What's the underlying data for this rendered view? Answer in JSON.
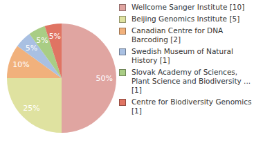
{
  "chart_data": {
    "type": "pie",
    "categories": [
      "Wellcome Sanger Institute [10]",
      "Beijing Genomics Institute [5]",
      "Canadian Centre for DNA Barcoding [2]",
      "Swedish Museum of Natural History [1]",
      "Slovak Academy of Sciences, Plant Science and Biodiversity ... [1]",
      "Centre for Biodiversity Genomics [1]"
    ],
    "values": [
      50,
      25,
      10,
      5,
      5,
      5
    ],
    "value_labels": [
      "50%",
      "25%",
      "10%",
      "5%",
      "5%",
      "5%"
    ],
    "colors": [
      "#e0a5a1",
      "#dfe2a0",
      "#f1b17c",
      "#a9c0e2",
      "#a9cd85",
      "#e07463"
    ],
    "data_labels": true,
    "legend": "right"
  }
}
